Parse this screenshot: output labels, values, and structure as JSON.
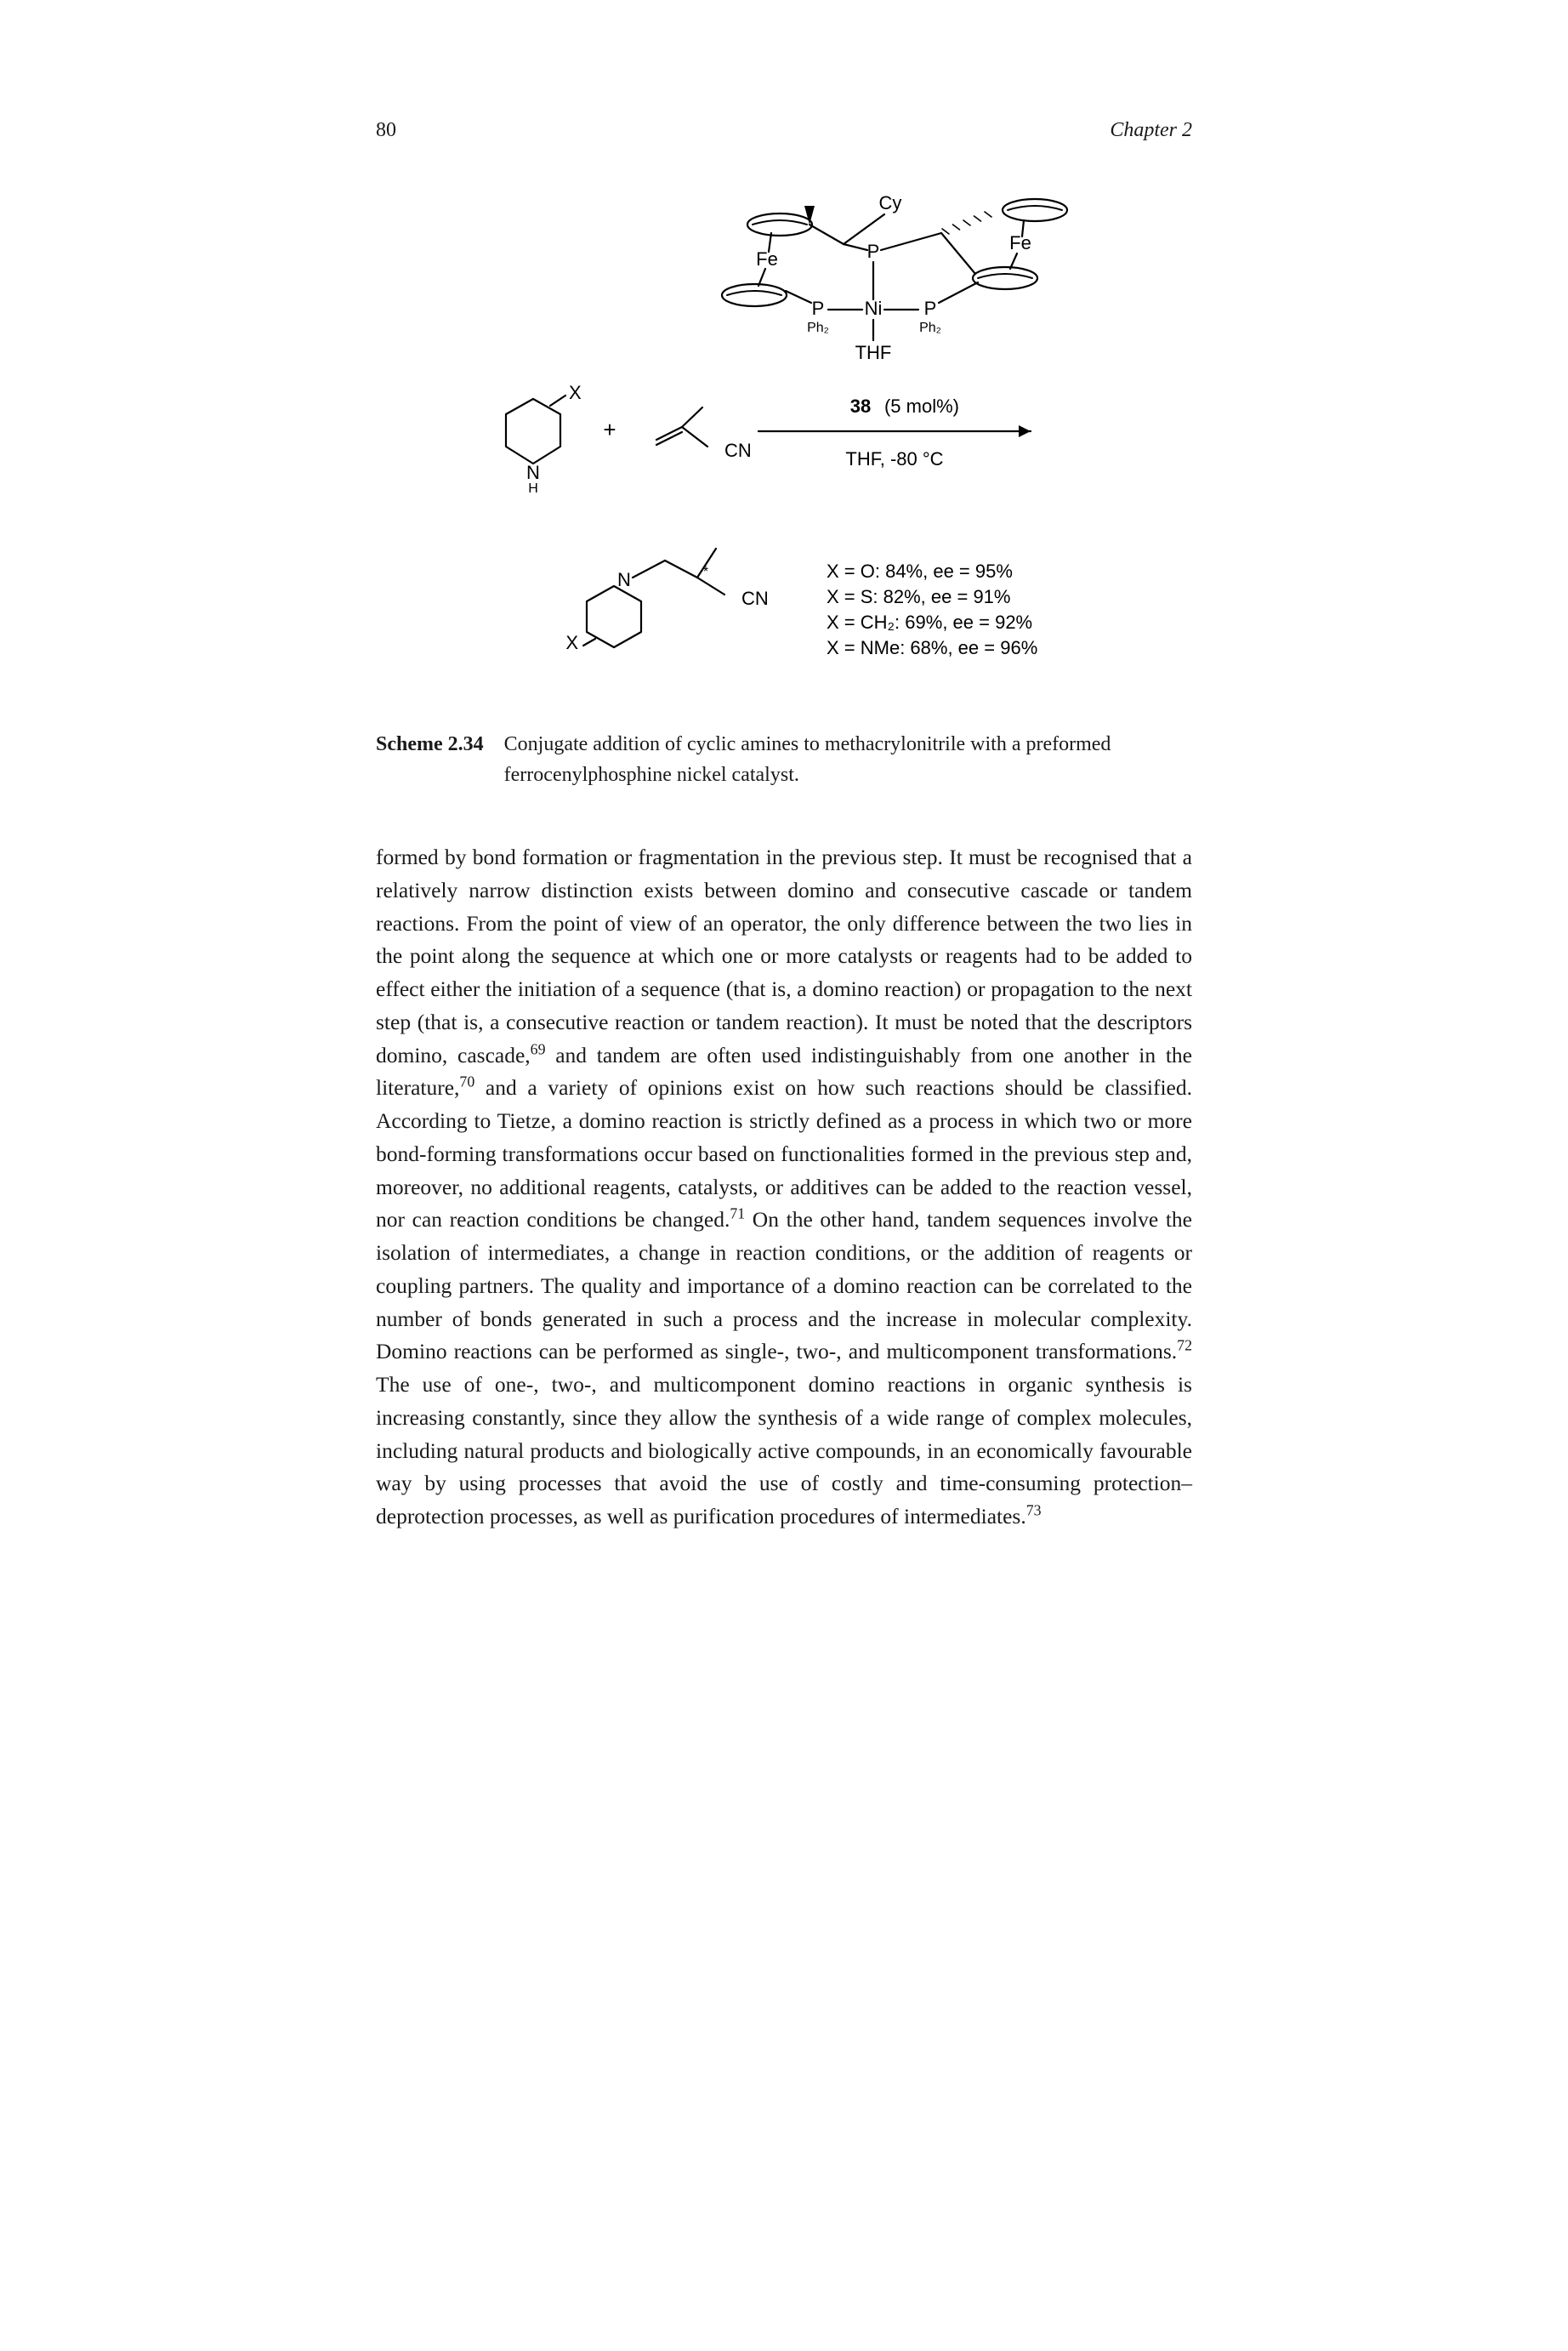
{
  "header": {
    "pageNumber": "80",
    "chapterLabel": "Chapter 2"
  },
  "scheme": {
    "label": "Scheme 2.34",
    "caption": "Conjugate addition of cyclic amines to methacrylonitrile with a preformed ferrocenylphosphine nickel catalyst.",
    "figure": {
      "catalystNumber": "38",
      "catalystLoading": "(5 mol%)",
      "solventLine": "THF, -80 °C",
      "ligandTHF": "THF",
      "catalystLabels": {
        "Fe1": "Fe",
        "Fe2": "Fe",
        "Cy": "Cy",
        "P1": "P",
        "P2": "P",
        "Ni": "Ni",
        "PPh2_1": "Ph₂",
        "PPh2_2": "Ph₂"
      },
      "reagents": {
        "amineX": "X",
        "amineN": "N",
        "amineH": "H",
        "nitrileCN": "CN",
        "productX": "X",
        "productN": "N",
        "productCN": "CN",
        "plus": "+",
        "chiralStar": "*"
      },
      "resultLines": [
        "X = O: 84%, ee = 95%",
        "X = S: 82%, ee = 91%",
        "X = CH₂: 69%, ee = 92%",
        "X = NMe: 68%, ee = 96%"
      ],
      "colors": {
        "stroke": "#000000",
        "text": "#000000",
        "background": "#ffffff"
      },
      "strokeWidth": 2.2,
      "fontSize": 22,
      "fontSizeSmall": 16,
      "fontFamily": "Arial, Helvetica, sans-serif"
    }
  },
  "bodyParagraph": "formed by bond formation or fragmentation in the previous step. It must be recognised that a relatively narrow distinction exists between domino and consecutive cascade or tandem reactions. From the point of view of an operator, the only difference between the two lies in the point along the sequence at which one or more catalysts or reagents had to be added to effect either the initiation of a sequence (that is, a domino reaction) or propagation to the next step (that is, a consecutive reaction or tandem reaction). It must be noted that the descriptors domino, cascade,<sup>69</sup> and tandem are often used indistinguishably from one another in the literature,<sup>70</sup> and a variety of opinions exist on how such reactions should be classified. According to Tietze, a domino reaction is strictly defined as a process in which two or more bond-forming transformations occur based on functionalities formed in the previous step and, moreover, no additional reagents, catalysts, or additives can be added to the reaction vessel, nor can reaction conditions be changed.<sup>71</sup> On the other hand, tandem sequences involve the isolation of intermediates, a change in reaction conditions, or the addition of reagents or coupling partners. The quality and importance of a domino reaction can be correlated to the number of bonds generated in such a process and the increase in molecular complexity. Domino reactions can be performed as single-, two-, and multicomponent transformations.<sup>72</sup> The use of one-, two-, and multicomponent domino reactions in organic synthesis is increasing constantly, since they allow the synthesis of a wide range of complex molecules, including natural products and biologically active compounds, in an economically favourable way by using processes that avoid the use of costly and time-consuming protection–deprotection processes, as well as purification procedures of intermediates.<sup>73</sup>"
}
